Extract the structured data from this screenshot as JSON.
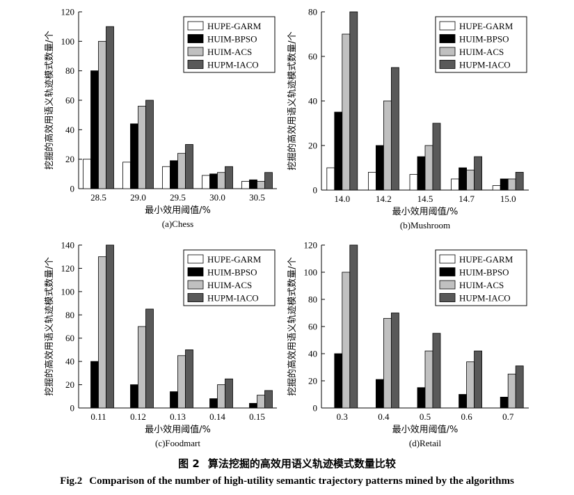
{
  "figure": {
    "caption_cn_label": "图 2",
    "caption_cn": "算法挖掘的高效用语义轨迹模式数量比较",
    "caption_en_label": "Fig.2",
    "caption_en": "Comparison of the number of high-utility semantic trajectory patterns mined by the algorithms"
  },
  "colors": {
    "HUPE-GARM": "#ffffff",
    "HUIM-BPSO": "#000000",
    "HUIM-ACS": "#c0c0c0",
    "HUPM-IACO": "#595959"
  },
  "chart_data": [
    {
      "type": "bar",
      "subtitle": "(a)Chess",
      "xlabel": "最小效用阈值/%",
      "ylabel": "挖掘的高效用语义轨迹模式数量/个",
      "categories": [
        "28.5",
        "29.0",
        "29.5",
        "30.0",
        "30.5"
      ],
      "ylim": [
        0,
        120
      ],
      "yticks": [
        0,
        20,
        40,
        60,
        80,
        100,
        120
      ],
      "legend": "top-right",
      "series": [
        {
          "name": "HUPE-GARM",
          "values": [
            20,
            18,
            15,
            9,
            5
          ]
        },
        {
          "name": "HUIM-BPSO",
          "values": [
            80,
            44,
            19,
            10,
            6
          ]
        },
        {
          "name": "HUIM-ACS",
          "values": [
            100,
            56,
            24,
            11,
            5
          ]
        },
        {
          "name": "HUPM-IACO",
          "values": [
            110,
            60,
            30,
            15,
            11
          ]
        }
      ]
    },
    {
      "type": "bar",
      "subtitle": "(b)Mushroom",
      "xlabel": "最小效用阈值/%",
      "ylabel": "挖掘的高效用语义轨迹模式数量/个",
      "categories": [
        "14.0",
        "14.2",
        "14.5",
        "14.7",
        "15.0"
      ],
      "ylim": [
        0,
        80
      ],
      "yticks": [
        0,
        20,
        40,
        60,
        80
      ],
      "legend": "top-right",
      "series": [
        {
          "name": "HUPE-GARM",
          "values": [
            10,
            8,
            7,
            5,
            2
          ]
        },
        {
          "name": "HUIM-BPSO",
          "values": [
            35,
            20,
            15,
            10,
            5
          ]
        },
        {
          "name": "HUIM-ACS",
          "values": [
            70,
            40,
            20,
            9,
            5
          ]
        },
        {
          "name": "HUPM-IACO",
          "values": [
            80,
            55,
            30,
            15,
            8
          ]
        }
      ]
    },
    {
      "type": "bar",
      "subtitle": "(c)Foodmart",
      "xlabel": "最小效用阈值/%",
      "ylabel": "挖掘的高效用语义轨迹模式数量/个",
      "categories": [
        "0.11",
        "0.12",
        "0.13",
        "0.14",
        "0.15"
      ],
      "ylim": [
        0,
        140
      ],
      "yticks": [
        0,
        20,
        40,
        60,
        80,
        100,
        120,
        140
      ],
      "legend": "top-right",
      "series": [
        {
          "name": "HUPE-GARM",
          "values": [
            0,
            0,
            0,
            0,
            0
          ]
        },
        {
          "name": "HUIM-BPSO",
          "values": [
            40,
            20,
            14,
            8,
            4
          ]
        },
        {
          "name": "HUIM-ACS",
          "values": [
            130,
            70,
            45,
            20,
            11
          ]
        },
        {
          "name": "HUPM-IACO",
          "values": [
            140,
            85,
            50,
            25,
            15
          ]
        }
      ]
    },
    {
      "type": "bar",
      "subtitle": "(d)Retail",
      "xlabel": "最小效用阈值/%",
      "ylabel": "挖掘的高效用语义轨迹模式数量/个",
      "categories": [
        "0.3",
        "0.4",
        "0.5",
        "0.6",
        "0.7"
      ],
      "ylim": [
        0,
        120
      ],
      "yticks": [
        0,
        20,
        40,
        60,
        80,
        100,
        120
      ],
      "legend": "top-right",
      "series": [
        {
          "name": "HUPE-GARM",
          "values": [
            0,
            0,
            0,
            0,
            0
          ]
        },
        {
          "name": "HUIM-BPSO",
          "values": [
            40,
            21,
            15,
            10,
            8
          ]
        },
        {
          "name": "HUIM-ACS",
          "values": [
            100,
            66,
            42,
            34,
            25
          ]
        },
        {
          "name": "HUPM-IACO",
          "values": [
            120,
            70,
            55,
            42,
            31
          ]
        }
      ]
    }
  ]
}
